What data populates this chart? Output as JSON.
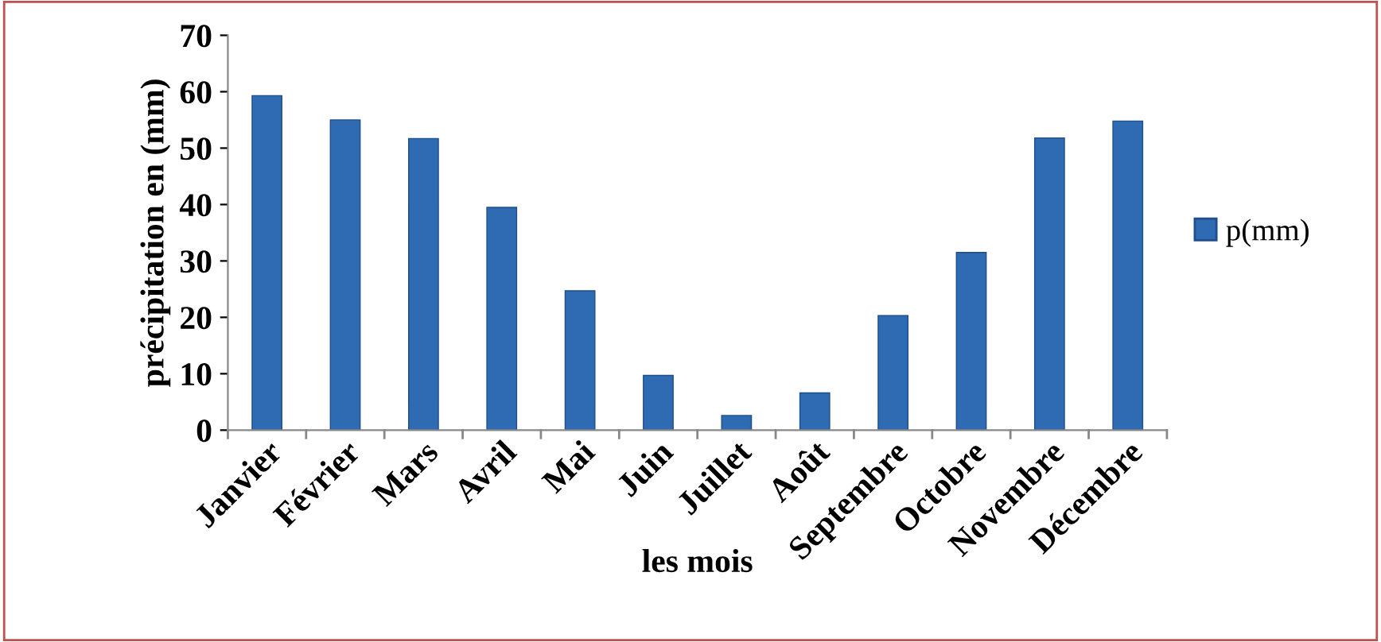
{
  "chart_data": {
    "type": "bar",
    "xlabel": "les mois",
    "ylabel": "précipitation en (mm)",
    "categories": [
      "Janvier",
      "Février",
      "Mars",
      "Avril",
      "Mai",
      "Juin",
      "Juillet",
      "Août",
      "Septembre",
      "Octobre",
      "Novembre",
      "Décembre"
    ],
    "series": [
      {
        "name": "p(mm)",
        "color": "#2f6bb3",
        "values": [
          59.3,
          55,
          51.7,
          39.5,
          24.7,
          9.7,
          2.6,
          6.6,
          20.3,
          31.5,
          51.8,
          54.8
        ]
      }
    ],
    "ylim": [
      0,
      70
    ],
    "yticks": [
      0,
      10,
      20,
      30,
      40,
      50,
      60,
      70
    ],
    "grid": false,
    "legend": "right"
  }
}
